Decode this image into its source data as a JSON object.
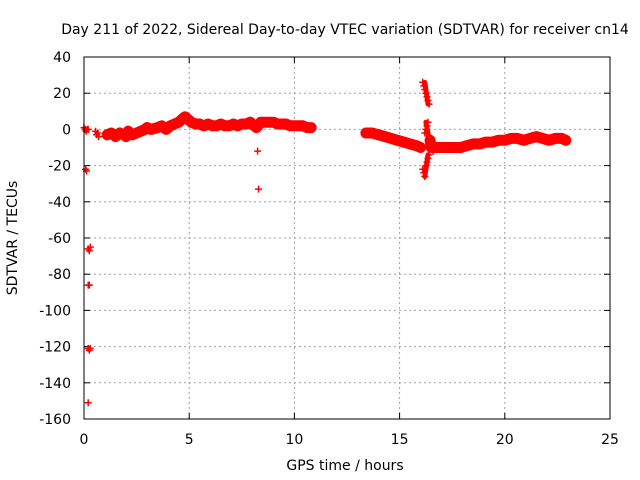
{
  "chart_data": {
    "type": "scatter",
    "title": "Day 211 of 2022, Sidereal Day-to-day VTEC variation (SDTVAR) for receiver cn14",
    "xlabel": "GPS time / hours",
    "ylabel": "SDTVAR / TECUs",
    "xlim": [
      0,
      25
    ],
    "ylim": [
      -160,
      40
    ],
    "x_ticks": [
      0,
      5,
      10,
      15,
      20,
      25
    ],
    "y_ticks": [
      -160,
      -140,
      -120,
      -100,
      -80,
      -60,
      -40,
      -20,
      0,
      20,
      40
    ],
    "grid": true,
    "marker": "+",
    "marker_color": "#ff0000",
    "series": [
      {
        "name": "SDTVAR",
        "points": [
          [
            0.0,
            1
          ],
          [
            0.05,
            0
          ],
          [
            0.1,
            -1
          ],
          [
            0.15,
            0
          ],
          [
            0.2,
            0
          ],
          [
            0.08,
            -22
          ],
          [
            0.12,
            -23
          ],
          [
            0.2,
            -66
          ],
          [
            0.25,
            -67
          ],
          [
            0.3,
            -65
          ],
          [
            0.2,
            -86
          ],
          [
            0.25,
            -86
          ],
          [
            0.2,
            -121
          ],
          [
            0.25,
            -122
          ],
          [
            0.3,
            -121
          ],
          [
            0.2,
            -151
          ],
          [
            0.55,
            -1
          ],
          [
            0.6,
            -3
          ],
          [
            0.65,
            -2
          ],
          [
            0.7,
            -4
          ],
          [
            1.1,
            -3
          ],
          [
            1.3,
            -2
          ],
          [
            1.5,
            -4
          ],
          [
            1.7,
            -2
          ],
          [
            1.9,
            -3
          ],
          [
            2.0,
            -4
          ],
          [
            2.1,
            -1
          ],
          [
            2.3,
            -3
          ],
          [
            2.5,
            -2
          ],
          [
            2.7,
            -1
          ],
          [
            2.9,
            0
          ],
          [
            3.0,
            1
          ],
          [
            3.2,
            0
          ],
          [
            3.5,
            1
          ],
          [
            3.7,
            2
          ],
          [
            3.9,
            0
          ],
          [
            4.1,
            2
          ],
          [
            4.3,
            3
          ],
          [
            4.5,
            4
          ],
          [
            4.7,
            6
          ],
          [
            4.8,
            7
          ],
          [
            4.9,
            6
          ],
          [
            5.0,
            5
          ],
          [
            5.1,
            4
          ],
          [
            5.3,
            3
          ],
          [
            5.5,
            3
          ],
          [
            5.7,
            2
          ],
          [
            5.9,
            3
          ],
          [
            6.1,
            2
          ],
          [
            6.3,
            2
          ],
          [
            6.5,
            3
          ],
          [
            6.7,
            2
          ],
          [
            6.9,
            2
          ],
          [
            7.1,
            3
          ],
          [
            7.3,
            2
          ],
          [
            7.5,
            3
          ],
          [
            7.7,
            3
          ],
          [
            7.9,
            4
          ],
          [
            8.0,
            3
          ],
          [
            8.1,
            2
          ],
          [
            8.2,
            1
          ],
          [
            8.25,
            -12
          ],
          [
            8.3,
            -33
          ],
          [
            8.4,
            4
          ],
          [
            8.6,
            4
          ],
          [
            8.8,
            4
          ],
          [
            9.0,
            4
          ],
          [
            9.2,
            3
          ],
          [
            9.4,
            3
          ],
          [
            9.6,
            3
          ],
          [
            9.8,
            2
          ],
          [
            10.0,
            2
          ],
          [
            10.2,
            2
          ],
          [
            10.4,
            2
          ],
          [
            10.6,
            1
          ],
          [
            10.8,
            1
          ],
          [
            13.4,
            -2
          ],
          [
            13.7,
            -2
          ],
          [
            14.0,
            -3
          ],
          [
            14.3,
            -4
          ],
          [
            14.6,
            -5
          ],
          [
            14.9,
            -6
          ],
          [
            15.2,
            -7
          ],
          [
            15.5,
            -8
          ],
          [
            15.8,
            -9
          ],
          [
            16.0,
            -10
          ],
          [
            16.1,
            26
          ],
          [
            16.15,
            24
          ],
          [
            16.2,
            22
          ],
          [
            16.25,
            20
          ],
          [
            16.3,
            18
          ],
          [
            16.35,
            16
          ],
          [
            16.4,
            14
          ],
          [
            16.1,
            -22
          ],
          [
            16.15,
            -24
          ],
          [
            16.2,
            -26
          ],
          [
            16.25,
            -20
          ],
          [
            16.3,
            -18
          ],
          [
            16.35,
            -16
          ],
          [
            16.4,
            -14
          ],
          [
            16.2,
            -2
          ],
          [
            16.25,
            0
          ],
          [
            16.3,
            2
          ],
          [
            16.35,
            4
          ],
          [
            16.4,
            -4
          ],
          [
            16.45,
            -6
          ],
          [
            16.5,
            -10
          ],
          [
            16.6,
            -12
          ],
          [
            16.7,
            -10
          ],
          [
            17.0,
            -10
          ],
          [
            17.3,
            -10
          ],
          [
            17.6,
            -11
          ],
          [
            17.9,
            -10
          ],
          [
            18.2,
            -9
          ],
          [
            18.5,
            -8
          ],
          [
            18.8,
            -8
          ],
          [
            19.1,
            -7
          ],
          [
            19.4,
            -7
          ],
          [
            19.7,
            -6
          ],
          [
            20.0,
            -6
          ],
          [
            20.3,
            -5
          ],
          [
            20.6,
            -5
          ],
          [
            20.9,
            -6
          ],
          [
            21.2,
            -5
          ],
          [
            21.5,
            -4
          ],
          [
            21.8,
            -5
          ],
          [
            22.1,
            -6
          ],
          [
            22.4,
            -5
          ],
          [
            22.7,
            -5
          ],
          [
            22.9,
            -6
          ]
        ]
      }
    ]
  }
}
